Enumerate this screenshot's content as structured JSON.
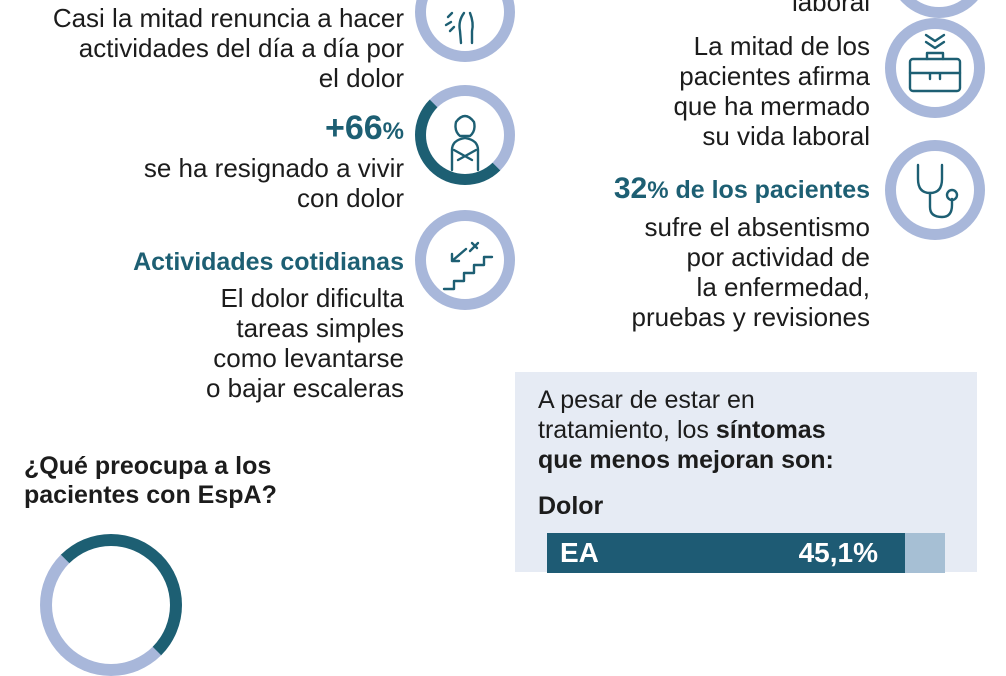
{
  "left_column": {
    "item1": {
      "lines": [
        "Casi la mitad renuncia a hacer",
        "actividades del día a día por",
        "el dolor"
      ],
      "icon": "back-pain-person-icon"
    },
    "item2": {
      "percent": "+66",
      "unit": "%",
      "lines": [
        "se ha resignado a vivir",
        "con dolor"
      ],
      "icon": "self-hug-person-icon"
    },
    "item3": {
      "heading": "Actividades cotidianas",
      "lines": [
        "El dolor dificulta",
        "tareas simples",
        "como levantarse",
        "o bajar escaleras"
      ],
      "icon": "stairs-icon"
    },
    "question": {
      "lines": [
        "¿Qué preocupa a los",
        "pacientes con EspA?"
      ]
    }
  },
  "right_column": {
    "item1": {
      "lines": [
        "laboral"
      ]
    },
    "item2": {
      "lines": [
        "La mitad de los",
        "pacientes afirma",
        "que ha mermado",
        "su vida laboral"
      ],
      "icon": "briefcase-icon"
    },
    "item3": {
      "percent": "32",
      "unit": "%",
      "heading_rest": " de los pacientes",
      "lines": [
        "sufre el absentismo",
        "por actividad de",
        "la enfermedad,",
        "pruebas y revisiones"
      ],
      "icon": "stethoscope-icon"
    }
  },
  "panel": {
    "intro_line1": "A pesar de estar en",
    "intro_line2_plain": "tratamiento, los ",
    "intro_line2_bold": "síntomas",
    "intro_line3_bold": "que menos mejoran son:",
    "section": "Dolor",
    "bar": {
      "label": "EA",
      "value_text": "45,1%",
      "value": 45.1,
      "fill_color": "#1e5b74",
      "track_color": "#a6bfd4"
    }
  },
  "colors": {
    "accent": "#1d5f73",
    "ring": "#a8b7da",
    "ring_dark": "#1d5f73",
    "panel": "#e6ebf4"
  }
}
